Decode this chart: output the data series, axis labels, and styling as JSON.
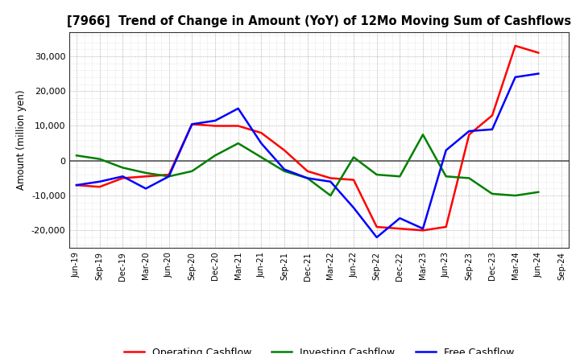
{
  "title": "[7966]  Trend of Change in Amount (YoY) of 12Mo Moving Sum of Cashflows",
  "ylabel": "Amount (million yen)",
  "x_labels": [
    "Jun-19",
    "Sep-19",
    "Dec-19",
    "Mar-20",
    "Jun-20",
    "Sep-20",
    "Dec-20",
    "Mar-21",
    "Jun-21",
    "Sep-21",
    "Dec-21",
    "Mar-22",
    "Jun-22",
    "Sep-22",
    "Dec-22",
    "Mar-23",
    "Jun-23",
    "Sep-23",
    "Dec-23",
    "Mar-24",
    "Jun-24",
    "Sep-24"
  ],
  "operating": [
    -7000,
    -7500,
    -5000,
    -4500,
    -4000,
    10500,
    10000,
    10000,
    8000,
    3000,
    -3000,
    -5000,
    -5500,
    -19000,
    -19500,
    -20000,
    -19000,
    7500,
    13000,
    33000,
    31000,
    null
  ],
  "investing": [
    1500,
    500,
    -2000,
    -3500,
    -4500,
    -3000,
    1500,
    5000,
    1000,
    -3000,
    -5000,
    -10000,
    1000,
    -4000,
    -4500,
    7500,
    -4500,
    -5000,
    -9500,
    -10000,
    -9000,
    null
  ],
  "free": [
    -7000,
    -6000,
    -4500,
    -8000,
    -4500,
    10500,
    11500,
    15000,
    5000,
    -2500,
    -5000,
    -6000,
    -13500,
    -22000,
    -16500,
    -19500,
    3000,
    8500,
    9000,
    24000,
    25000,
    null
  ],
  "operating_color": "#ff0000",
  "investing_color": "#008000",
  "free_color": "#0000ff",
  "ylim": [
    -25000,
    37000
  ],
  "yticks": [
    -20000,
    -10000,
    0,
    10000,
    20000,
    30000
  ],
  "background_color": "#ffffff",
  "plot_bg_color": "#f8f8f8"
}
